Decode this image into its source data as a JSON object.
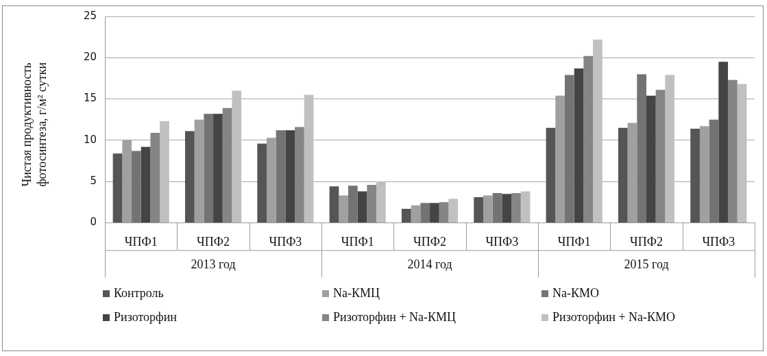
{
  "chart_data": {
    "type": "bar",
    "ylabel": "Чистая продуктивность фотосинтеза, г/м² сутки",
    "categories": [
      "ЧПФ1",
      "ЧПФ2",
      "ЧПФ3",
      "ЧПФ1",
      "ЧПФ2",
      "ЧПФ3",
      "ЧПФ1",
      "ЧПФ2",
      "ЧПФ3"
    ],
    "annotations": [
      "2013 год",
      "2014 год",
      "2015 год"
    ],
    "series": [
      {
        "name": "Контроль",
        "color": "#555555",
        "values": [
          8.4,
          11.1,
          9.6,
          4.4,
          1.7,
          3.1,
          11.5,
          11.5,
          11.4
        ]
      },
      {
        "name": "Na-КМЦ",
        "color": "#a0a0a0",
        "values": [
          10.0,
          12.5,
          10.3,
          3.3,
          2.1,
          3.3,
          15.4,
          12.1,
          11.7
        ]
      },
      {
        "name": "Na-КМО",
        "color": "#737373",
        "values": [
          8.7,
          13.2,
          11.2,
          4.5,
          2.4,
          3.6,
          17.9,
          18.0,
          12.5
        ]
      },
      {
        "name": "Ризоторфин",
        "color": "#444444",
        "values": [
          9.2,
          13.2,
          11.2,
          3.8,
          2.4,
          3.5,
          18.7,
          15.4,
          19.5
        ]
      },
      {
        "name": "Ризоторфин + Na-КМЦ",
        "color": "#858585",
        "values": [
          10.9,
          13.9,
          11.6,
          4.6,
          2.5,
          3.6,
          20.2,
          16.1,
          17.3
        ]
      },
      {
        "name": "Ризоторфин + Na-КМО",
        "color": "#c0c0c0",
        "values": [
          12.3,
          16.0,
          15.5,
          5.0,
          2.9,
          3.8,
          22.2,
          17.9,
          16.8
        ]
      }
    ],
    "ylim": [
      0,
      25
    ],
    "yticks": [
      0,
      5,
      10,
      15,
      20,
      25
    ],
    "grid": true,
    "legend": "bottom"
  }
}
